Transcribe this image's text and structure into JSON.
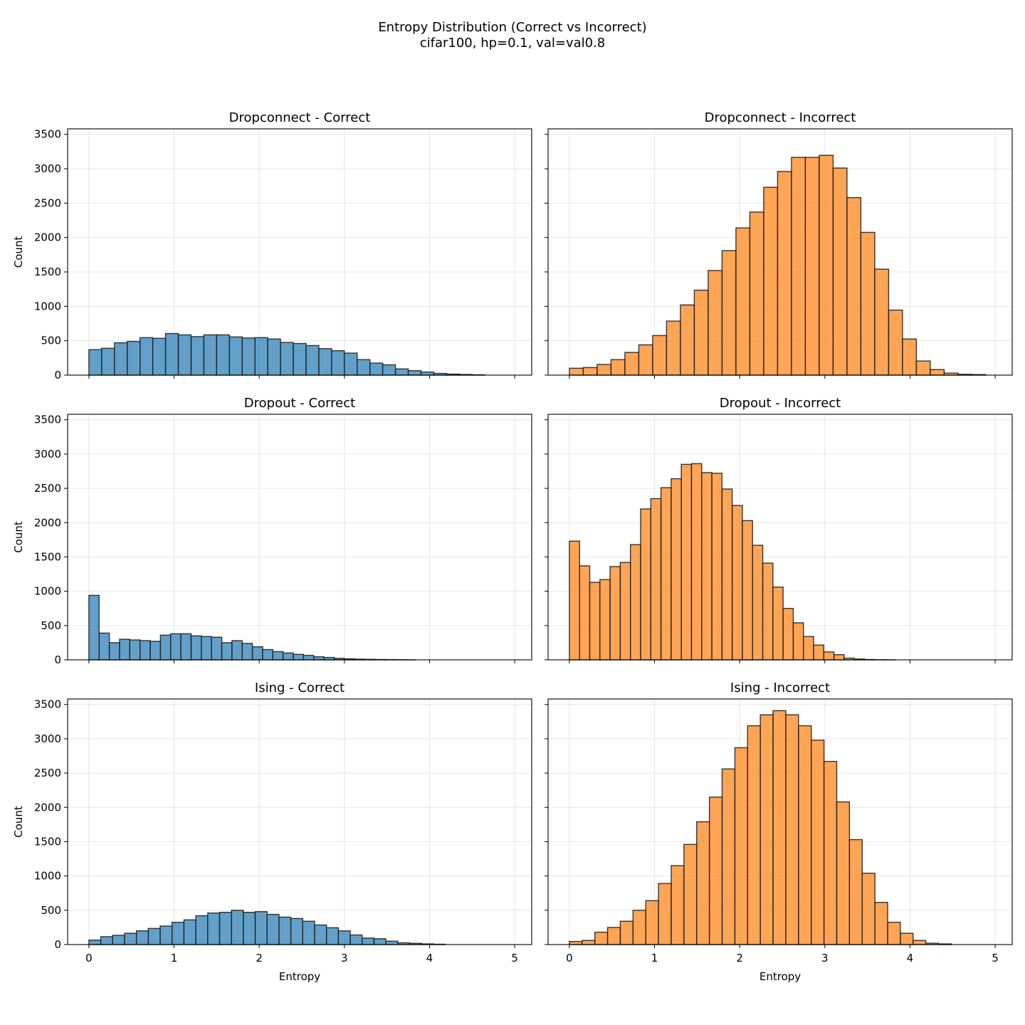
{
  "figure": {
    "title_line1": "Entropy Distribution (Correct vs Incorrect)",
    "title_line2": "cifar100, hp=0.1, val=val0.8"
  },
  "colors": {
    "correct": "#1f77b4",
    "incorrect": "#ff7f0e"
  },
  "chart_data": [
    {
      "type": "bar",
      "subtype": "histogram",
      "title": "Dropconnect - Correct",
      "xlabel": "",
      "ylabel": "Count",
      "xlim": [
        -0.25,
        5.2
      ],
      "ylim": [
        0,
        3580
      ],
      "xticks": [
        0,
        1,
        2,
        3,
        4,
        5
      ],
      "yticks": [
        0,
        500,
        1000,
        1500,
        2000,
        2500,
        3000,
        3500
      ],
      "show_xtick_labels": false,
      "show_ytick_labels": true,
      "series": "correct",
      "bin_start": 0.0,
      "bin_width": 0.15,
      "values": [
        370,
        390,
        470,
        490,
        545,
        535,
        605,
        585,
        560,
        585,
        585,
        555,
        540,
        545,
        525,
        475,
        460,
        430,
        385,
        355,
        320,
        225,
        175,
        150,
        90,
        65,
        45,
        25,
        15,
        10,
        5
      ]
    },
    {
      "type": "bar",
      "subtype": "histogram",
      "title": "Dropconnect - Incorrect",
      "xlabel": "",
      "ylabel": "",
      "xlim": [
        -0.25,
        5.2
      ],
      "ylim": [
        0,
        3580
      ],
      "xticks": [
        0,
        1,
        2,
        3,
        4,
        5
      ],
      "yticks": [
        0,
        500,
        1000,
        1500,
        2000,
        2500,
        3000,
        3500
      ],
      "show_xtick_labels": false,
      "show_ytick_labels": false,
      "series": "incorrect",
      "bin_start": 0.0,
      "bin_width": 0.163,
      "values": [
        100,
        110,
        155,
        225,
        330,
        440,
        575,
        785,
        1020,
        1235,
        1520,
        1810,
        2140,
        2370,
        2730,
        2960,
        3165,
        3165,
        3195,
        3010,
        2580,
        2075,
        1540,
        945,
        525,
        205,
        80,
        30,
        12,
        8
      ]
    },
    {
      "type": "bar",
      "subtype": "histogram",
      "title": "Dropout - Correct",
      "xlabel": "",
      "ylabel": "Count",
      "xlim": [
        -0.25,
        5.2
      ],
      "ylim": [
        0,
        3580
      ],
      "xticks": [
        0,
        1,
        2,
        3,
        4,
        5
      ],
      "yticks": [
        0,
        500,
        1000,
        1500,
        2000,
        2500,
        3000,
        3500
      ],
      "show_xtick_labels": false,
      "show_ytick_labels": true,
      "series": "correct",
      "bin_start": 0.0,
      "bin_width": 0.12,
      "values": [
        940,
        390,
        250,
        300,
        290,
        280,
        270,
        360,
        380,
        380,
        350,
        340,
        330,
        250,
        280,
        240,
        190,
        150,
        120,
        100,
        80,
        65,
        45,
        35,
        22,
        15,
        10,
        8,
        5,
        4,
        2,
        1
      ]
    },
    {
      "type": "bar",
      "subtype": "histogram",
      "title": "Dropout - Incorrect",
      "xlabel": "",
      "ylabel": "",
      "xlim": [
        -0.25,
        5.2
      ],
      "ylim": [
        0,
        3580
      ],
      "xticks": [
        0,
        1,
        2,
        3,
        4,
        5
      ],
      "yticks": [
        0,
        500,
        1000,
        1500,
        2000,
        2500,
        3000,
        3500
      ],
      "show_xtick_labels": false,
      "show_ytick_labels": false,
      "series": "incorrect",
      "bin_start": 0.0,
      "bin_width": 0.1195,
      "values": [
        1730,
        1370,
        1130,
        1170,
        1360,
        1420,
        1680,
        2200,
        2350,
        2510,
        2640,
        2850,
        2860,
        2730,
        2720,
        2490,
        2250,
        2030,
        1670,
        1410,
        1060,
        750,
        540,
        340,
        215,
        115,
        75,
        25,
        12,
        5,
        2,
        1
      ]
    },
    {
      "type": "bar",
      "subtype": "histogram",
      "title": "Ising - Correct",
      "xlabel": "Entropy",
      "ylabel": "Count",
      "xlim": [
        -0.25,
        5.2
      ],
      "ylim": [
        0,
        3580
      ],
      "xticks": [
        0,
        1,
        2,
        3,
        4,
        5
      ],
      "yticks": [
        0,
        500,
        1000,
        1500,
        2000,
        2500,
        3000,
        3500
      ],
      "show_xtick_labels": true,
      "show_ytick_labels": true,
      "series": "correct",
      "bin_start": 0.0,
      "bin_width": 0.1395,
      "values": [
        65,
        115,
        135,
        165,
        200,
        235,
        270,
        325,
        360,
        420,
        460,
        470,
        500,
        470,
        480,
        440,
        400,
        380,
        340,
        285,
        245,
        200,
        140,
        95,
        85,
        50,
        25,
        18,
        10,
        5
      ]
    },
    {
      "type": "bar",
      "subtype": "histogram",
      "title": "Ising - Incorrect",
      "xlabel": "Entropy",
      "ylabel": "",
      "xlim": [
        -0.25,
        5.2
      ],
      "ylim": [
        0,
        3580
      ],
      "xticks": [
        0,
        1,
        2,
        3,
        4,
        5
      ],
      "yticks": [
        0,
        500,
        1000,
        1500,
        2000,
        2500,
        3000,
        3500
      ],
      "show_xtick_labels": true,
      "show_ytick_labels": false,
      "series": "incorrect",
      "bin_start": 0.0,
      "bin_width": 0.1495,
      "values": [
        45,
        60,
        180,
        250,
        340,
        500,
        640,
        890,
        1150,
        1460,
        1790,
        2150,
        2560,
        2870,
        3190,
        3350,
        3410,
        3350,
        3190,
        2980,
        2670,
        2080,
        1530,
        1040,
        615,
        325,
        165,
        60,
        20,
        10
      ]
    }
  ]
}
